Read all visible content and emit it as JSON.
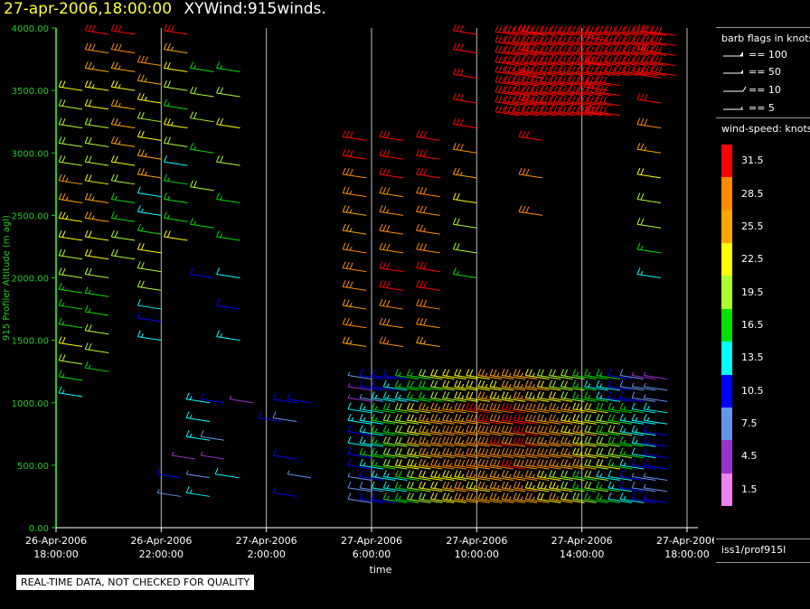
{
  "header": {
    "date": "27-apr-2006,18:00:00",
    "title": "XYWind:915winds."
  },
  "footer_note": "REAL-TIME DATA, NOT CHECKED FOR QUALITY",
  "legend": {
    "barb_title": "barb flags in knots",
    "barbs": [
      {
        "label": "== 100",
        "icon": "pennant-barb"
      },
      {
        "label": "== 50",
        "icon": "pennant-barb"
      },
      {
        "label": "== 10",
        "icon": "full-barb"
      },
      {
        "label": "== 5",
        "icon": "half-barb"
      }
    ],
    "speed_title": "wind-speed: knots",
    "speed_scale": [
      {
        "label": "31.5",
        "color": "#ff0000"
      },
      {
        "label": "28.5",
        "color": "#ff8c00"
      },
      {
        "label": "25.5",
        "color": "#ffa500"
      },
      {
        "label": "22.5",
        "color": "#ffff00"
      },
      {
        "label": "19.5",
        "color": "#adff2f"
      },
      {
        "label": "16.5",
        "color": "#00e000"
      },
      {
        "label": "13.5",
        "color": "#00ffff"
      },
      {
        "label": "10.5",
        "color": "#0000ff"
      },
      {
        "label": "7.5",
        "color": "#6495ed"
      },
      {
        "label": "4.5",
        "color": "#9932cc"
      },
      {
        "label": "1.5",
        "color": "#ee82ee"
      }
    ],
    "station": "iss1/prof915l"
  },
  "chart_data": {
    "type": "wind-barb time-height",
    "ylabel": "915 Profiler Altitude (m agl)",
    "xlabel": "time",
    "ylim": [
      0,
      4000
    ],
    "yticks": [
      "0.00",
      "500.00",
      "1000.00",
      "1500.00",
      "2000.00",
      "2500.00",
      "3000.00",
      "3500.00",
      "4000.00"
    ],
    "xticks": [
      {
        "date": "26-Apr-2006",
        "time": "18:00:00",
        "hours": 0
      },
      {
        "date": "26-Apr-2006",
        "time": "22:00:00",
        "hours": 4
      },
      {
        "date": "27-Apr-2006",
        "time": "2:00:00",
        "hours": 8
      },
      {
        "date": "27-Apr-2006",
        "time": "6:00:00",
        "hours": 12
      },
      {
        "date": "27-Apr-2006",
        "time": "10:00:00",
        "hours": 16
      },
      {
        "date": "27-Apr-2006",
        "time": "14:00:00",
        "hours": 20
      },
      {
        "date": "27-Apr-2006",
        "time": "18:00:00",
        "hours": 24
      }
    ],
    "xlim_hours": [
      0,
      24
    ],
    "grid": "vertical lines at each 4-hour tick",
    "series": [
      {
        "hours": 1.0,
        "alt": [
          1050,
          1180,
          1310,
          1450,
          1600,
          1750,
          1880,
          2000,
          2150,
          2300,
          2450,
          2600,
          2750,
          2900,
          3050,
          3200,
          3350,
          3500
        ],
        "speed": [
          14,
          16,
          18,
          22,
          16,
          15,
          17,
          18,
          20,
          22,
          23,
          25,
          24,
          20,
          19,
          18,
          20,
          22
        ]
      },
      {
        "hours": 2.0,
        "alt": [
          1250,
          1400,
          1550,
          1700,
          1850,
          2000,
          2150,
          2300,
          2450,
          2600,
          2750,
          2900,
          3050,
          3200,
          3350,
          3500,
          3650,
          3800,
          3950
        ],
        "speed": [
          16,
          18,
          20,
          15,
          17,
          19,
          21,
          22,
          24,
          25,
          22,
          20,
          18,
          19,
          21,
          23,
          25,
          28,
          31
        ]
      },
      {
        "hours": 3.0,
        "alt": [
          2150,
          2300,
          2450,
          2600,
          2750,
          2900,
          3050,
          3200,
          3350,
          3500,
          3650,
          3800,
          3950
        ],
        "speed": [
          18,
          20,
          17,
          16,
          19,
          22,
          24,
          26,
          25,
          23,
          26,
          28,
          31
        ]
      },
      {
        "hours": 4.0,
        "alt": [
          1500,
          1650,
          1750,
          1900,
          2050,
          2200,
          2350,
          2500,
          2650,
          2800,
          2950,
          3100,
          3250,
          3400,
          3550,
          3700
        ],
        "speed": [
          13,
          11,
          12,
          18,
          20,
          21,
          16,
          13,
          12,
          26,
          24,
          22,
          20,
          23,
          25,
          28
        ]
      },
      {
        "hours": 5.0,
        "alt": [
          2300,
          2450,
          2600,
          2750,
          2900,
          3050,
          3200,
          3350,
          3500,
          3650,
          3800,
          3950
        ],
        "speed": [
          22,
          16,
          15,
          17,
          12,
          20,
          23,
          16,
          18,
          21,
          24,
          30
        ]
      },
      {
        "hours": 6.0,
        "alt": [
          2000,
          2400,
          2700,
          3000,
          3250,
          3450,
          3650
        ],
        "speed": [
          10,
          16,
          18,
          17,
          19,
          20,
          17
        ]
      },
      {
        "hours": 7.0,
        "alt": [
          1500,
          1750,
          2000,
          2300,
          2600,
          2900,
          3200,
          3450,
          3650
        ],
        "speed": [
          13,
          10,
          12,
          16,
          15,
          20,
          22,
          18,
          16
        ]
      },
      {
        "hours": 11.8,
        "alt": [
          1450,
          1600,
          1750,
          1900,
          2050,
          2200,
          2350,
          2500,
          2650,
          2800,
          2950,
          3100
        ],
        "speed": [
          25,
          27,
          26,
          28,
          29,
          27,
          26,
          25,
          27,
          28,
          30,
          31
        ]
      },
      {
        "hours": 13.2,
        "alt": [
          1450,
          1600,
          1750,
          1900,
          2050,
          2200,
          2350,
          2500,
          2650,
          2800,
          2950,
          3100
        ],
        "speed": [
          27,
          29,
          28,
          30,
          31,
          29,
          28,
          27,
          29,
          30,
          31,
          31
        ]
      },
      {
        "hours": 14.6,
        "alt": [
          1450,
          1600,
          1750,
          1900,
          2050,
          2200,
          2350,
          2500,
          2650,
          2800,
          2950,
          3100
        ],
        "speed": [
          26,
          28,
          29,
          31,
          30,
          28,
          27,
          28,
          29,
          30,
          31,
          31
        ]
      },
      {
        "hours": 16.0,
        "alt": [
          2000,
          2200,
          2400,
          2600,
          2800,
          3000,
          3200,
          3400,
          3600,
          3800,
          3950
        ],
        "speed": [
          16,
          18,
          20,
          22,
          24,
          28,
          31,
          31,
          31,
          31,
          31
        ]
      },
      {
        "hours": 18.5,
        "alt": [
          2500,
          2800,
          3100,
          3400,
          3600,
          3800,
          3950
        ],
        "speed": [
          28,
          29,
          30,
          31,
          31,
          31,
          31
        ]
      },
      {
        "hours": 21.0,
        "alt": [
          3300,
          3500,
          3700,
          3900
        ],
        "speed": [
          31,
          31,
          31,
          31
        ]
      },
      {
        "hours": 23.0,
        "alt": [
          2000,
          2200,
          2400,
          2600,
          2800,
          3000,
          3200,
          3400,
          3600,
          3800,
          3950
        ],
        "speed": [
          13,
          16,
          18,
          20,
          22,
          25,
          28,
          31,
          31,
          31,
          31
        ]
      }
    ],
    "low_level_note": "Dense low-level barbs (200-1300 m) between 12 and 24 hours with speeds 5-31 knots"
  }
}
